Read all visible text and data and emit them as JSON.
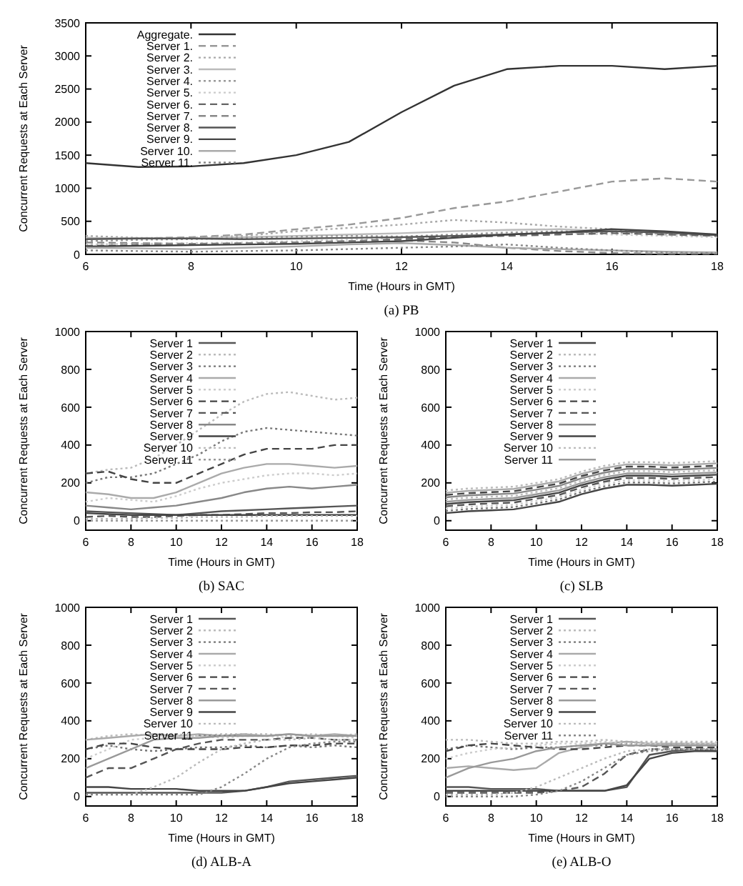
{
  "chart_data": [
    {
      "type": "line",
      "title": "(a) PB",
      "xlabel": "Time (Hours in GMT)",
      "ylabel": "Concurrent Requests at Each Server",
      "x": [
        6,
        7,
        8,
        9,
        10,
        11,
        12,
        13,
        14,
        15,
        16,
        17,
        18
      ],
      "xlim": [
        6,
        18
      ],
      "xticks": [
        6,
        8,
        10,
        12,
        14,
        16,
        18
      ],
      "ylim": [
        0,
        3500
      ],
      "yticks": [
        0,
        500,
        1000,
        1500,
        2000,
        2500,
        3000,
        3500
      ],
      "legend": "top left",
      "series": [
        {
          "name": "Aggregate.",
          "color": "#333333",
          "line_style": "solid",
          "values": [
            1380,
            1320,
            1330,
            1380,
            1500,
            1700,
            2150,
            2550,
            2800,
            2850,
            2850,
            2800,
            2850
          ]
        },
        {
          "name": "Server 1.",
          "color": "#999999",
          "line_style": "dashed",
          "values": [
            250,
            240,
            260,
            300,
            380,
            450,
            550,
            700,
            800,
            950,
            1100,
            1150,
            1100
          ]
        },
        {
          "name": "Server 2.",
          "color": "#aaaaaa",
          "line_style": "dotted",
          "values": [
            280,
            250,
            250,
            280,
            350,
            400,
            450,
            520,
            480,
            420,
            380,
            300,
            280
          ]
        },
        {
          "name": "Server 3.",
          "color": "#bbbbbb",
          "line_style": "solid",
          "values": [
            250,
            240,
            240,
            260,
            280,
            300,
            320,
            350,
            370,
            380,
            350,
            330,
            300
          ]
        },
        {
          "name": "Server 4.",
          "color": "#999999",
          "line_style": "dotted",
          "values": [
            200,
            220,
            230,
            250,
            270,
            280,
            270,
            300,
            330,
            350,
            330,
            320,
            290
          ]
        },
        {
          "name": "Server 5.",
          "color": "#cccccc",
          "line_style": "dotted",
          "values": [
            150,
            160,
            170,
            180,
            200,
            220,
            250,
            270,
            300,
            320,
            300,
            280,
            260
          ]
        },
        {
          "name": "Server 6.",
          "color": "#666666",
          "line_style": "dashed",
          "values": [
            130,
            140,
            150,
            160,
            180,
            200,
            230,
            260,
            280,
            300,
            320,
            300,
            280
          ]
        },
        {
          "name": "Server 7.",
          "color": "#888888",
          "line_style": "dashed",
          "values": [
            180,
            170,
            160,
            170,
            180,
            200,
            210,
            180,
            100,
            50,
            20,
            10,
            10
          ]
        },
        {
          "name": "Server 8.",
          "color": "#555555",
          "line_style": "solid",
          "values": [
            230,
            240,
            240,
            230,
            240,
            250,
            260,
            280,
            300,
            330,
            350,
            330,
            290
          ]
        },
        {
          "name": "Server 9.",
          "color": "#444444",
          "line_style": "solid",
          "values": [
            120,
            130,
            140,
            150,
            160,
            180,
            200,
            250,
            300,
            330,
            380,
            350,
            300
          ]
        },
        {
          "name": "Server 10.",
          "color": "#aaaaaa",
          "line_style": "solid",
          "values": [
            100,
            90,
            80,
            100,
            120,
            150,
            170,
            140,
            100,
            80,
            60,
            40,
            30
          ]
        },
        {
          "name": "Server 11.",
          "color": "#888888",
          "line_style": "dotted",
          "values": [
            60,
            50,
            40,
            50,
            60,
            80,
            100,
            120,
            150,
            100,
            60,
            30,
            20
          ]
        }
      ]
    },
    {
      "type": "line",
      "title": "(b) SAC",
      "xlabel": "Time (Hours in GMT)",
      "ylabel": "Concurrent Requests at Each Server",
      "x": [
        6,
        7,
        8,
        9,
        10,
        11,
        12,
        13,
        14,
        15,
        16,
        17,
        18
      ],
      "xlim": [
        6,
        18
      ],
      "xticks": [
        6,
        8,
        10,
        12,
        14,
        16,
        18
      ],
      "ylim": [
        -50,
        1000
      ],
      "yticks": [
        0,
        200,
        400,
        600,
        800,
        1000
      ],
      "legend": "top left",
      "series": [
        {
          "name": "Server 1",
          "color": "#555555",
          "line_style": "solid",
          "values": [
            50,
            45,
            40,
            35,
            30,
            40,
            50,
            55,
            60,
            65,
            70,
            75,
            80
          ]
        },
        {
          "name": "Server 2",
          "color": "#bbbbbb",
          "line_style": "dotted",
          "values": [
            250,
            270,
            280,
            330,
            400,
            480,
            560,
            630,
            670,
            680,
            660,
            640,
            650
          ]
        },
        {
          "name": "Server 3",
          "color": "#777777",
          "line_style": "dotted",
          "values": [
            200,
            230,
            230,
            250,
            300,
            350,
            420,
            470,
            490,
            480,
            470,
            460,
            450
          ]
        },
        {
          "name": "Server 4",
          "color": "#aaaaaa",
          "line_style": "solid",
          "values": [
            150,
            140,
            120,
            120,
            150,
            200,
            250,
            280,
            300,
            300,
            290,
            280,
            290
          ]
        },
        {
          "name": "Server 5",
          "color": "#cccccc",
          "line_style": "dotted",
          "values": [
            100,
            120,
            110,
            100,
            130,
            170,
            200,
            220,
            240,
            250,
            250,
            240,
            250
          ]
        },
        {
          "name": "Server 6",
          "color": "#444444",
          "line_style": "dashed",
          "values": [
            250,
            260,
            220,
            200,
            200,
            250,
            300,
            350,
            380,
            380,
            380,
            400,
            400
          ]
        },
        {
          "name": "Server 7",
          "color": "#555555",
          "line_style": "dashed",
          "values": [
            20,
            25,
            20,
            20,
            25,
            30,
            30,
            35,
            40,
            40,
            45,
            45,
            50
          ]
        },
        {
          "name": "Server 8",
          "color": "#888888",
          "line_style": "solid",
          "values": [
            80,
            70,
            60,
            70,
            80,
            100,
            120,
            150,
            170,
            180,
            170,
            180,
            190
          ]
        },
        {
          "name": "Server 9",
          "color": "#444444",
          "line_style": "solid",
          "values": [
            40,
            35,
            30,
            30,
            30,
            30,
            30,
            30,
            30,
            30,
            30,
            30,
            30
          ]
        },
        {
          "name": "Server 10",
          "color": "#bbbbbb",
          "line_style": "dotted",
          "values": [
            10,
            10,
            10,
            15,
            15,
            20,
            20,
            20,
            25,
            25,
            25,
            25,
            25
          ]
        },
        {
          "name": "Server 11",
          "color": "#999999",
          "line_style": "dotted",
          "values": [
            0,
            0,
            0,
            0,
            0,
            0,
            0,
            0,
            0,
            0,
            0,
            0,
            0
          ]
        }
      ]
    },
    {
      "type": "line",
      "title": "(c) SLB",
      "xlabel": "Time (Hours in GMT)",
      "ylabel": "Concurrent Requests at Each Server",
      "x": [
        6,
        7,
        8,
        9,
        10,
        11,
        12,
        13,
        14,
        15,
        16,
        17,
        18
      ],
      "xlim": [
        6,
        18
      ],
      "xticks": [
        6,
        8,
        10,
        12,
        14,
        16,
        18
      ],
      "ylim": [
        -50,
        1000
      ],
      "yticks": [
        0,
        200,
        400,
        600,
        800,
        1000
      ],
      "legend": "top left",
      "series": [
        {
          "name": "Server 1",
          "color": "#444444",
          "line_style": "solid",
          "values": [
            40,
            50,
            55,
            60,
            80,
            100,
            140,
            170,
            190,
            190,
            185,
            190,
            195
          ]
        },
        {
          "name": "Server 2",
          "color": "#bbbbbb",
          "line_style": "dotted",
          "values": [
            160,
            170,
            175,
            180,
            200,
            220,
            260,
            290,
            310,
            310,
            305,
            310,
            315
          ]
        },
        {
          "name": "Server 3",
          "color": "#777777",
          "line_style": "dotted",
          "values": [
            52,
            62,
            67,
            72,
            92,
            112,
            152,
            182,
            202,
            202,
            197,
            202,
            207
          ]
        },
        {
          "name": "Server 4",
          "color": "#aaaaaa",
          "line_style": "solid",
          "values": [
            148,
            158,
            163,
            168,
            188,
            208,
            248,
            278,
            298,
            298,
            293,
            298,
            303
          ]
        },
        {
          "name": "Server 5",
          "color": "#cccccc",
          "line_style": "dotted",
          "values": [
            64,
            74,
            79,
            84,
            104,
            124,
            164,
            194,
            214,
            214,
            209,
            214,
            219
          ]
        },
        {
          "name": "Server 6",
          "color": "#444444",
          "line_style": "dashed",
          "values": [
            136,
            146,
            151,
            156,
            176,
            196,
            236,
            266,
            286,
            286,
            281,
            286,
            291
          ]
        },
        {
          "name": "Server 7",
          "color": "#555555",
          "line_style": "dashed",
          "values": [
            76,
            86,
            91,
            96,
            116,
            136,
            176,
            206,
            226,
            226,
            221,
            226,
            231
          ]
        },
        {
          "name": "Server 8",
          "color": "#888888",
          "line_style": "solid",
          "values": [
            124,
            134,
            139,
            144,
            164,
            184,
            224,
            254,
            274,
            274,
            269,
            274,
            279
          ]
        },
        {
          "name": "Server 9",
          "color": "#444444",
          "line_style": "solid",
          "values": [
            88,
            98,
            103,
            108,
            128,
            148,
            188,
            218,
            238,
            238,
            233,
            238,
            243
          ]
        },
        {
          "name": "Server 10",
          "color": "#bbbbbb",
          "line_style": "dotted",
          "values": [
            112,
            122,
            127,
            132,
            152,
            172,
            212,
            242,
            262,
            262,
            257,
            262,
            267
          ]
        },
        {
          "name": "Server 11",
          "color": "#999999",
          "line_style": "solid",
          "values": [
            100,
            110,
            115,
            120,
            140,
            160,
            200,
            230,
            250,
            250,
            245,
            250,
            255
          ]
        }
      ]
    },
    {
      "type": "line",
      "title": "(d) ALB-A",
      "xlabel": "Time (Hours in GMT)",
      "ylabel": "Concurrent Requests at Each Server",
      "x": [
        6,
        7,
        8,
        9,
        10,
        11,
        12,
        13,
        14,
        15,
        16,
        17,
        18
      ],
      "xlim": [
        6,
        18
      ],
      "xticks": [
        6,
        8,
        10,
        12,
        14,
        16,
        18
      ],
      "ylim": [
        -50,
        1000
      ],
      "yticks": [
        0,
        200,
        400,
        600,
        800,
        1000
      ],
      "legend": "top left",
      "series": [
        {
          "name": "Server 1",
          "color": "#555555",
          "line_style": "solid",
          "values": [
            20,
            20,
            20,
            20,
            20,
            20,
            20,
            30,
            50,
            80,
            90,
            100,
            110
          ]
        },
        {
          "name": "Server 2",
          "color": "#bbbbbb",
          "line_style": "dotted",
          "values": [
            300,
            320,
            330,
            320,
            330,
            320,
            330,
            330,
            330,
            320,
            330,
            320,
            330
          ]
        },
        {
          "name": "Server 3",
          "color": "#777777",
          "line_style": "dotted",
          "values": [
            250,
            270,
            250,
            240,
            250,
            260,
            260,
            270,
            260,
            270,
            260,
            270,
            260
          ]
        },
        {
          "name": "Server 4",
          "color": "#aaaaaa",
          "line_style": "solid",
          "values": [
            300,
            310,
            320,
            330,
            320,
            330,
            320,
            330,
            320,
            330,
            320,
            330,
            320
          ]
        },
        {
          "name": "Server 5",
          "color": "#cccccc",
          "line_style": "dotted",
          "values": [
            200,
            250,
            300,
            310,
            320,
            320,
            310,
            320,
            320,
            310,
            320,
            320,
            310
          ]
        },
        {
          "name": "Server 6",
          "color": "#444444",
          "line_style": "dashed",
          "values": [
            250,
            280,
            280,
            260,
            250,
            250,
            250,
            260,
            260,
            270,
            270,
            280,
            280
          ]
        },
        {
          "name": "Server 7",
          "color": "#555555",
          "line_style": "dashed",
          "values": [
            100,
            150,
            150,
            200,
            250,
            280,
            300,
            300,
            300,
            310,
            310,
            300,
            300
          ]
        },
        {
          "name": "Server 8",
          "color": "#999999",
          "line_style": "solid",
          "values": [
            150,
            200,
            250,
            300,
            310,
            310,
            320,
            320,
            320,
            330,
            320,
            320,
            320
          ]
        },
        {
          "name": "Server 9",
          "color": "#444444",
          "line_style": "solid",
          "values": [
            50,
            50,
            40,
            40,
            40,
            30,
            30,
            30,
            50,
            70,
            80,
            90,
            100
          ]
        },
        {
          "name": "Server 10",
          "color": "#bbbbbb",
          "line_style": "dotted",
          "values": [
            10,
            10,
            10,
            50,
            100,
            180,
            250,
            280,
            300,
            300,
            310,
            300,
            300
          ]
        },
        {
          "name": "Server 11",
          "color": "#888888",
          "line_style": "dotted",
          "values": [
            10,
            10,
            10,
            10,
            10,
            10,
            50,
            120,
            200,
            260,
            280,
            290,
            290
          ]
        }
      ]
    },
    {
      "type": "line",
      "title": "(e) ALB-O",
      "xlabel": "Time (Hours in GMT)",
      "ylabel": "Concurrent Requests at Each Server",
      "x": [
        6,
        7,
        8,
        9,
        10,
        11,
        12,
        13,
        14,
        15,
        16,
        17,
        18
      ],
      "xlim": [
        6,
        18
      ],
      "xticks": [
        6,
        8,
        10,
        12,
        14,
        16,
        18
      ],
      "ylim": [
        -50,
        1000
      ],
      "yticks": [
        0,
        200,
        400,
        600,
        800,
        1000
      ],
      "legend": "top left",
      "series": [
        {
          "name": "Server 1",
          "color": "#555555",
          "line_style": "solid",
          "values": [
            50,
            50,
            40,
            40,
            40,
            30,
            30,
            30,
            50,
            220,
            240,
            250,
            240
          ]
        },
        {
          "name": "Server 2",
          "color": "#bbbbbb",
          "line_style": "dotted",
          "values": [
            300,
            300,
            290,
            280,
            280,
            290,
            290,
            300,
            290,
            290,
            290,
            290,
            290
          ]
        },
        {
          "name": "Server 3",
          "color": "#777777",
          "line_style": "dotted",
          "values": [
            250,
            270,
            260,
            250,
            260,
            260,
            270,
            270,
            280,
            280,
            280,
            280,
            280
          ]
        },
        {
          "name": "Server 4",
          "color": "#aaaaaa",
          "line_style": "solid",
          "values": [
            150,
            160,
            150,
            140,
            150,
            230,
            260,
            280,
            290,
            280,
            280,
            280,
            280
          ]
        },
        {
          "name": "Server 5",
          "color": "#cccccc",
          "line_style": "dotted",
          "values": [
            200,
            230,
            250,
            260,
            270,
            280,
            280,
            290,
            280,
            280,
            270,
            280,
            280
          ]
        },
        {
          "name": "Server 6",
          "color": "#444444",
          "line_style": "dashed",
          "values": [
            240,
            270,
            280,
            270,
            260,
            250,
            250,
            260,
            270,
            270,
            260,
            260,
            260
          ]
        },
        {
          "name": "Server 7",
          "color": "#555555",
          "line_style": "dashed",
          "values": [
            20,
            20,
            20,
            20,
            20,
            30,
            50,
            120,
            220,
            250,
            250,
            250,
            250
          ]
        },
        {
          "name": "Server 8",
          "color": "#999999",
          "line_style": "solid",
          "values": [
            100,
            150,
            180,
            200,
            240,
            260,
            270,
            280,
            270,
            270,
            270,
            270,
            270
          ]
        },
        {
          "name": "Server 9",
          "color": "#444444",
          "line_style": "solid",
          "values": [
            30,
            30,
            30,
            30,
            30,
            30,
            30,
            30,
            60,
            200,
            230,
            240,
            240
          ]
        },
        {
          "name": "Server 10",
          "color": "#bbbbbb",
          "line_style": "dotted",
          "values": [
            10,
            10,
            10,
            20,
            50,
            100,
            150,
            200,
            240,
            250,
            250,
            250,
            250
          ]
        },
        {
          "name": "Server 11",
          "color": "#888888",
          "line_style": "dotted",
          "values": [
            0,
            0,
            0,
            0,
            10,
            30,
            80,
            150,
            220,
            240,
            250,
            250,
            250
          ]
        }
      ]
    }
  ]
}
